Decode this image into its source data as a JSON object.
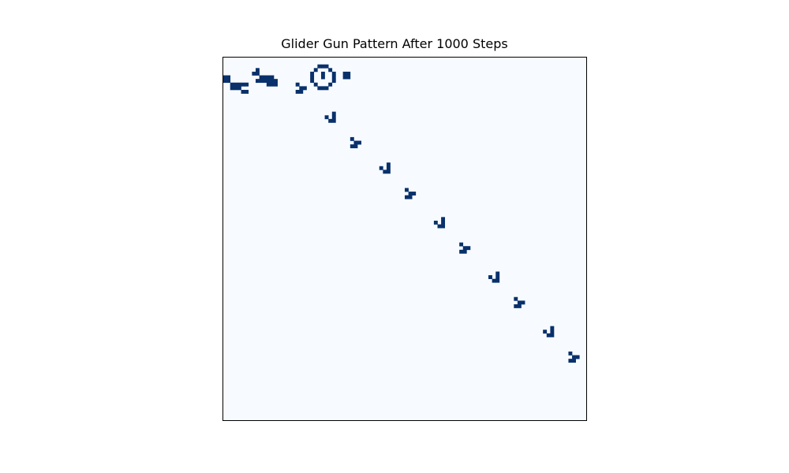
{
  "chart_data": {
    "type": "heatmap",
    "title": "Glider Gun Pattern After 1000 Steps",
    "xlabel": "",
    "ylabel": "",
    "grid": false,
    "axes_visible": false,
    "grid_size": [
      100,
      100
    ],
    "colors": {
      "dead": "#f7fbff",
      "alive": "#08306b",
      "frame": "#000000"
    },
    "cell_states": [
      "dead",
      "alive"
    ],
    "alive_cells_row_col": [
      [
        3,
        9
      ],
      [
        4,
        8
      ],
      [
        4,
        9
      ],
      [
        5,
        0
      ],
      [
        5,
        1
      ],
      [
        5,
        10
      ],
      [
        5,
        11
      ],
      [
        5,
        12
      ],
      [
        5,
        13
      ],
      [
        6,
        0
      ],
      [
        6,
        1
      ],
      [
        6,
        9
      ],
      [
        6,
        10
      ],
      [
        6,
        11
      ],
      [
        6,
        12
      ],
      [
        6,
        13
      ],
      [
        6,
        14
      ],
      [
        7,
        2
      ],
      [
        7,
        3
      ],
      [
        7,
        4
      ],
      [
        7,
        5
      ],
      [
        7,
        6
      ],
      [
        7,
        12
      ],
      [
        7,
        13
      ],
      [
        7,
        14
      ],
      [
        8,
        2
      ],
      [
        8,
        3
      ],
      [
        8,
        4
      ],
      [
        9,
        5
      ],
      [
        9,
        6
      ],
      [
        2,
        26
      ],
      [
        2,
        27
      ],
      [
        2,
        28
      ],
      [
        3,
        25
      ],
      [
        3,
        29
      ],
      [
        4,
        24
      ],
      [
        4,
        27
      ],
      [
        4,
        30
      ],
      [
        5,
        24
      ],
      [
        5,
        27
      ],
      [
        5,
        30
      ],
      [
        6,
        24
      ],
      [
        6,
        30
      ],
      [
        7,
        25
      ],
      [
        7,
        29
      ],
      [
        8,
        26
      ],
      [
        8,
        27
      ],
      [
        8,
        28
      ],
      [
        4,
        33
      ],
      [
        4,
        34
      ],
      [
        5,
        33
      ],
      [
        5,
        34
      ]
    ],
    "glider_trail": {
      "phase_a_cells": [
        [
          0,
          0
        ],
        [
          1,
          1
        ],
        [
          1,
          2
        ],
        [
          2,
          0
        ],
        [
          2,
          1
        ]
      ],
      "phase_b_cells": [
        [
          0,
          2
        ],
        [
          1,
          0
        ],
        [
          1,
          2
        ],
        [
          2,
          1
        ],
        [
          2,
          2
        ]
      ],
      "origins_row_col": [
        [
          7,
          20
        ],
        [
          15,
          28
        ],
        [
          22,
          35
        ],
        [
          29,
          43
        ],
        [
          36,
          50
        ],
        [
          44,
          58
        ],
        [
          51,
          65
        ],
        [
          59,
          73
        ],
        [
          66,
          80
        ],
        [
          74,
          88
        ],
        [
          81,
          95
        ]
      ]
    }
  }
}
